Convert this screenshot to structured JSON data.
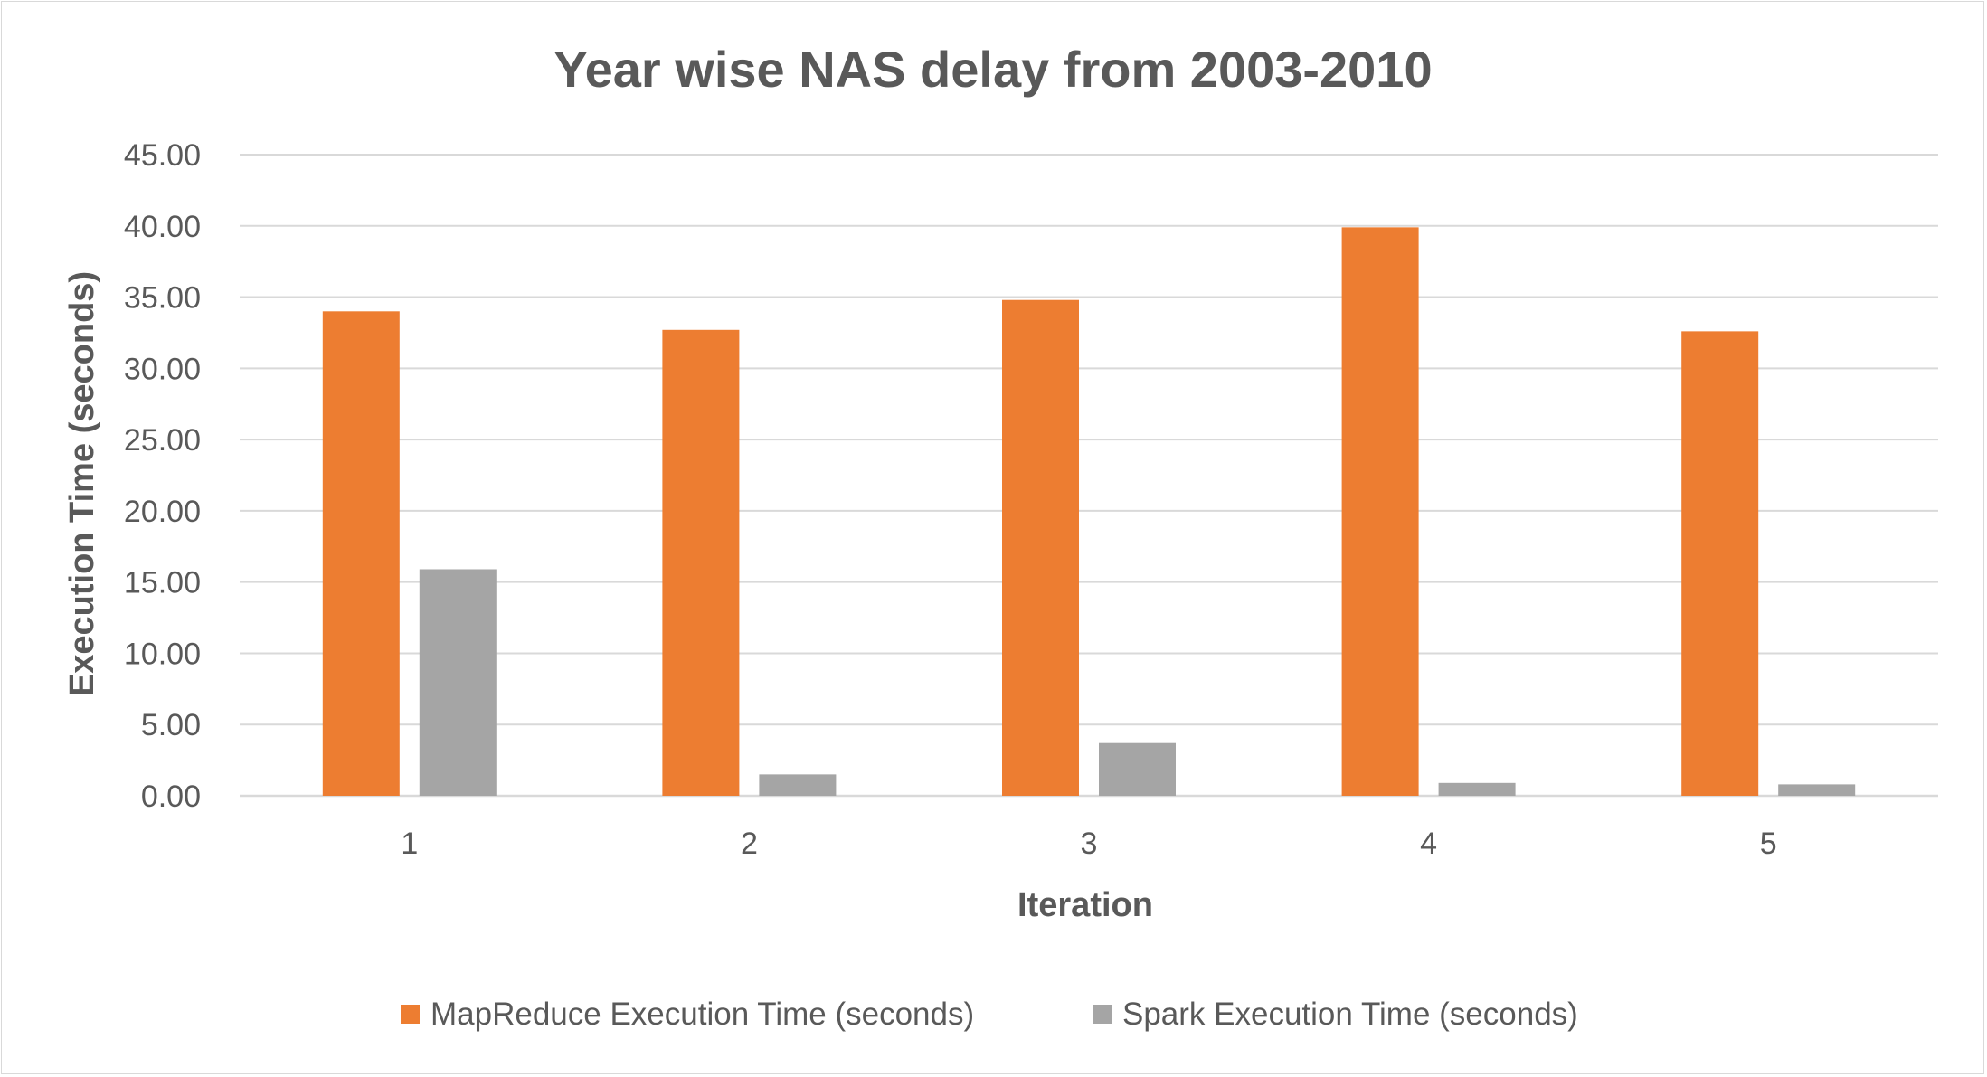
{
  "chart_data": {
    "type": "bar",
    "title": "Year wise NAS delay from 2003-2010",
    "xlabel": "Iteration",
    "ylabel": "Execution Time (seconds)",
    "categories": [
      "1",
      "2",
      "3",
      "4",
      "5"
    ],
    "series": [
      {
        "name": "MapReduce Execution Time (seconds)",
        "color": "#ed7d31",
        "values": [
          34.0,
          32.7,
          34.8,
          39.9,
          32.6
        ]
      },
      {
        "name": "Spark Execution Time (seconds)",
        "color": "#a5a5a5",
        "values": [
          15.9,
          1.5,
          3.7,
          0.9,
          0.8
        ]
      }
    ],
    "ylim": [
      0,
      45
    ],
    "ytick_step": 5,
    "ytick_labels": [
      "0.00",
      "5.00",
      "10.00",
      "15.00",
      "20.00",
      "25.00",
      "30.00",
      "35.00",
      "40.00",
      "45.00"
    ],
    "grid": true,
    "legend_position": "bottom",
    "gridline_color": "#d9d9d9",
    "text_color": "#595959"
  }
}
